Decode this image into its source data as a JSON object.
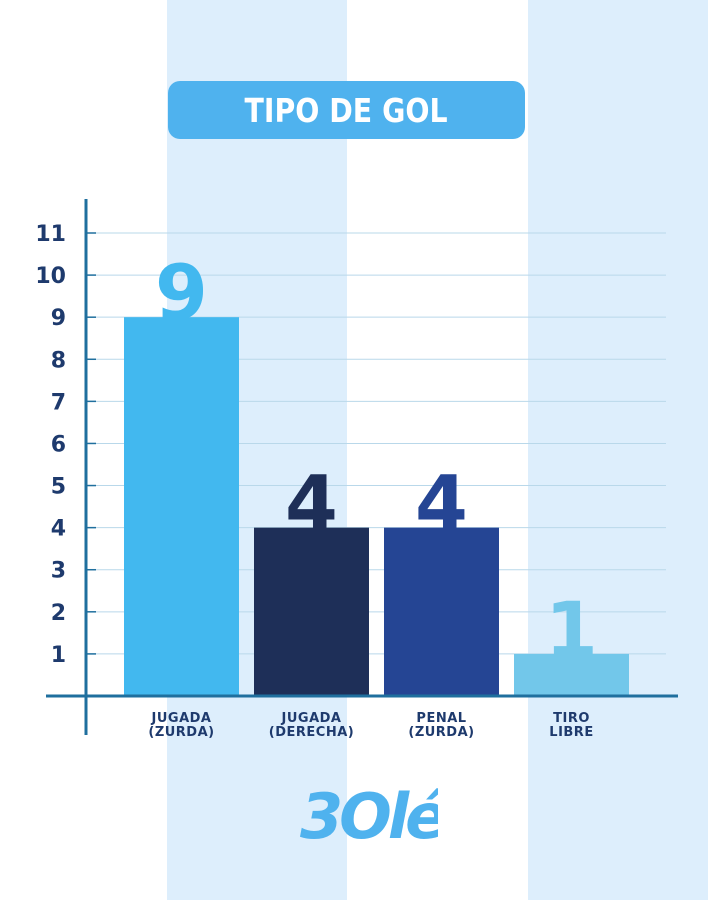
{
  "colors": {
    "background": "#ffffff",
    "stripe": "#ddeefc",
    "banner": "#4fb2ee",
    "axis": "#1f6f9e",
    "grid": "#b9d8ea",
    "tick_text": "#1e3a6d",
    "logo": "#4fb2ee"
  },
  "logo": {
    "text": "3Olé"
  },
  "chart_data": {
    "type": "bar",
    "title": "TIPO DE GOL",
    "xlabel": "",
    "ylabel": "",
    "ylim": [
      0,
      11
    ],
    "y_ticks": [
      1,
      2,
      3,
      4,
      5,
      6,
      7,
      8,
      9,
      10,
      11
    ],
    "grid": true,
    "categories": [
      {
        "line1": "JUGADA",
        "line2": "(ZURDA)"
      },
      {
        "line1": "JUGADA",
        "line2": "(DERECHA)"
      },
      {
        "line1": "PENAL",
        "line2": "(ZURDA)"
      },
      {
        "line1": "TIRO",
        "line2": "LIBRE"
      }
    ],
    "values": [
      9,
      4,
      4,
      1
    ],
    "data_labels": [
      "9",
      "4",
      "4",
      "1"
    ],
    "bar_colors": [
      "#42b8ef",
      "#1e2f58",
      "#254594",
      "#72c7ea"
    ],
    "label_colors": [
      "#42b8ef",
      "#1e2f58",
      "#254594",
      "#72c7ea"
    ]
  }
}
